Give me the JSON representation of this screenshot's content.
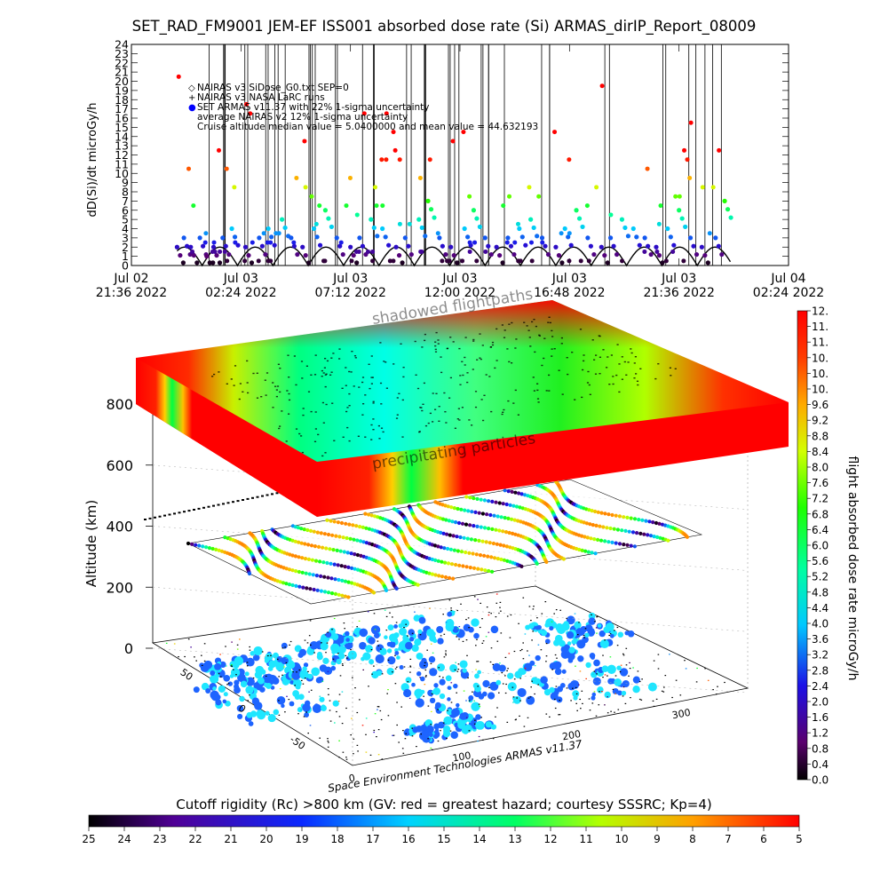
{
  "chart_data": [
    {
      "type": "scatter",
      "title": "SET_RAD_FM9001  JEM-EF ISS001 absorbed dose rate (Si) ARMAS_dirIP_Report_08009",
      "ylabel": "dD(Si)/dt microGy/h",
      "ylim": [
        0,
        24
      ],
      "yticks": [
        0,
        1,
        2,
        3,
        4,
        5,
        6,
        7,
        8,
        9,
        10,
        11,
        12,
        13,
        14,
        15,
        16,
        17,
        18,
        19,
        20,
        21,
        22,
        23,
        24
      ],
      "xticks": [
        {
          "l1": "Jul 02",
          "l2": "21:36 2022"
        },
        {
          "l1": "Jul 03",
          "l2": "02:24 2022"
        },
        {
          "l1": "Jul 03",
          "l2": "07:12 2022"
        },
        {
          "l1": "Jul 03",
          "l2": "12:00 2022"
        },
        {
          "l1": "Jul 03",
          "l2": "16:48 2022"
        },
        {
          "l1": "Jul 03",
          "l2": "21:36 2022"
        },
        {
          "l1": "Jul 04",
          "l2": "02:24 2022"
        }
      ],
      "legend": [
        "NAIRAS v3 SiDose_G0.txt SEP=0",
        "NAIRAS v3 NASA LaRC runs",
        "SET ARMAS v11.37 with 22% 1-sigma uncertainty",
        "average NAIRAS v2 12% 1-sigma uncertainty",
        "Cruise altitude median value = 5.0400000 and mean value = 44.632193"
      ],
      "legend_colors": {
        "nairas_sidose": "#000000",
        "nairas_larc": "#000000",
        "armas": "#0000ff"
      },
      "series": [
        {
          "name": "SET ARMAS v11.37 with 22% 1-sigma uncertainty",
          "x_hours": [
            2.0,
            2.3,
            2.6,
            3.0,
            3.3,
            3.6,
            4.0,
            4.4,
            5.0,
            5.6,
            6.0,
            6.6,
            7.0,
            7.5,
            8.0,
            8.5,
            9.0,
            9.6,
            10.0,
            10.5,
            11.0,
            11.6,
            12.0,
            12.6,
            13.0,
            13.5,
            14.0,
            14.6,
            15.0,
            15.5,
            16.0,
            16.5,
            17.0,
            17.5,
            18.0,
            18.6,
            19.0,
            19.5,
            20.0,
            20.6,
            21.0,
            21.5,
            22.0,
            22.5,
            23.0,
            23.5,
            24.0,
            24.5,
            25.0,
            25.6,
            26.0
          ],
          "y": [
            2,
            3,
            2,
            3,
            1,
            2,
            3,
            4,
            2,
            3,
            4,
            5,
            3,
            2,
            4,
            6,
            3,
            2,
            3,
            5,
            4,
            2,
            3,
            5,
            7,
            3,
            2,
            4,
            6,
            3,
            2,
            3,
            4,
            5,
            3,
            2,
            4,
            6,
            3,
            2,
            3,
            5,
            4,
            3,
            2,
            4,
            6,
            3,
            2,
            3,
            7
          ]
        }
      ],
      "nairas_peak": 2,
      "nairas_period_hours": 1.55
    },
    {
      "type": "scatter",
      "title": "",
      "zlabel": "Altitude (km)",
      "zlim": [
        0,
        800
      ],
      "zticks": [
        0,
        200,
        400,
        600,
        800
      ],
      "xticks": [
        0,
        100,
        200,
        300
      ],
      "yticks": [
        -50,
        0,
        50
      ],
      "annotations": [
        "shadowed flightpaths",
        "precipitating particles"
      ],
      "footer": "Space Environment Technologies ARMAS v11.37",
      "colorbar": {
        "label": "flight absorbed dose rate microGy/h",
        "ticks": [
          "0.0",
          "0.4",
          "0.8",
          "1.2",
          "1.6",
          "2.0",
          "2.4",
          "2.8",
          "3.2",
          "3.6",
          "4.0",
          "4.4",
          "4.8",
          "5.2",
          "5.6",
          "6.0",
          "6.4",
          "6.8",
          "7.2",
          "7.6",
          "8.0",
          "8.4",
          "8.8",
          "9.2",
          "9.6",
          "10.",
          "10.",
          "10.",
          "11.",
          "11.",
          "12."
        ],
        "range": [
          0,
          12
        ]
      },
      "cutoff_colorbar": {
        "label": "Cutoff rigidity (Rc) >800 km (GV: red = greatest hazard; courtesy SSSRC; Kp=4)",
        "ticks": [
          "25",
          "24",
          "23",
          "22",
          "21",
          "20",
          "19",
          "18",
          "17",
          "16",
          "15",
          "14",
          "13",
          "12",
          "11",
          "10",
          "9",
          "8",
          "7",
          "6",
          "5"
        ],
        "range": [
          25,
          5
        ]
      }
    }
  ],
  "colors": {
    "hazard_red": "#ff0000",
    "low_cyan": "#00ffff",
    "axis": "#000000"
  }
}
